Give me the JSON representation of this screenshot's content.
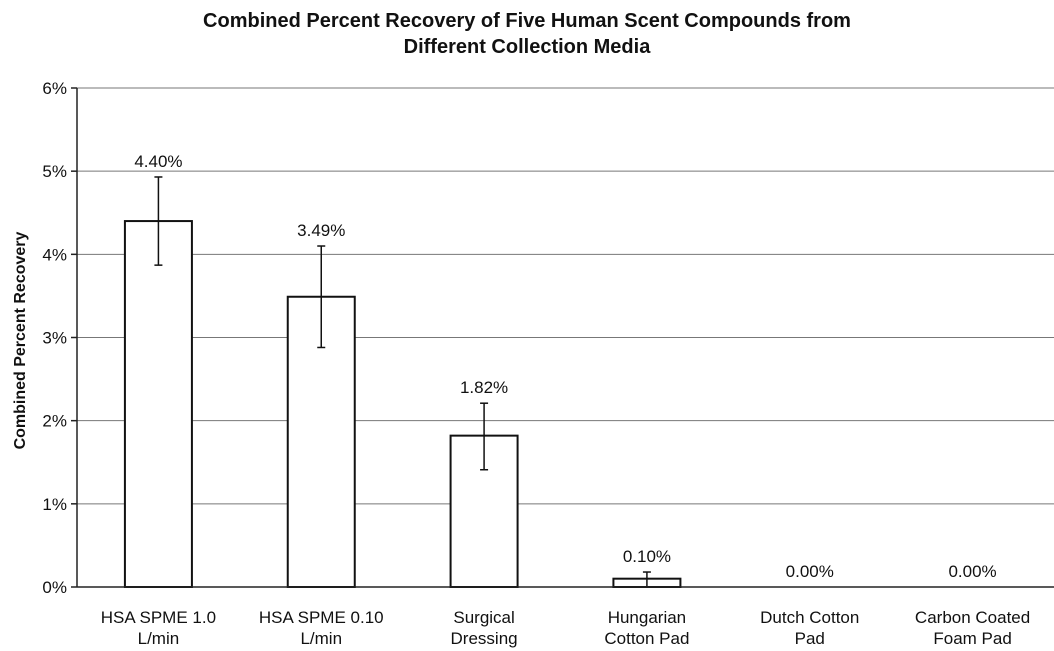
{
  "chart_data": {
    "type": "bar",
    "title_line1": "Combined Percent Recovery of Five Human Scent Compounds from",
    "title_line2": "Different Collection Media",
    "xlabel": "",
    "ylabel": "Combined Percent Recovery",
    "categories": [
      [
        "HSA SPME 1.0",
        "L/min"
      ],
      [
        "HSA SPME 0.10",
        "L/min"
      ],
      [
        "Surgical",
        "Dressing"
      ],
      [
        "Hungarian",
        "Cotton Pad"
      ],
      [
        "Dutch Cotton",
        "Pad"
      ],
      [
        "Carbon Coated",
        "Foam Pad"
      ]
    ],
    "values": [
      4.4,
      3.49,
      1.82,
      0.1,
      0.0,
      0.0
    ],
    "data_labels": [
      "4.40%",
      "3.49%",
      "1.82%",
      "0.10%",
      "0.00%",
      "0.00%"
    ],
    "error_low": [
      3.87,
      2.88,
      1.41,
      0.0,
      0.0,
      0.0
    ],
    "error_high": [
      4.93,
      4.1,
      2.21,
      0.18,
      0.0,
      0.0
    ],
    "yticks": [
      0,
      1,
      2,
      3,
      4,
      5,
      6
    ],
    "ytick_labels": [
      "0%",
      "1%",
      "2%",
      "3%",
      "4%",
      "5%",
      "6%"
    ],
    "ylim": [
      0,
      6
    ],
    "grid": true,
    "legend": "none"
  }
}
